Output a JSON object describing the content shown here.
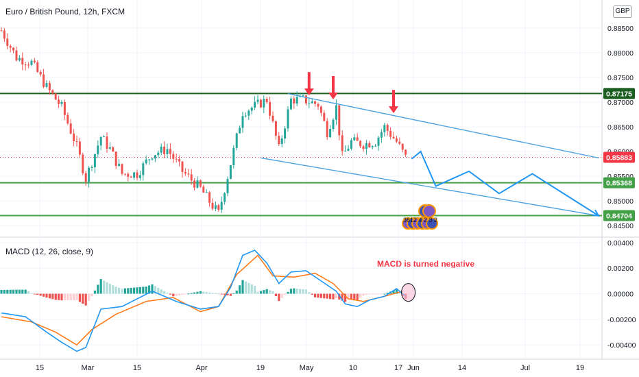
{
  "header": {
    "title": "Euro / British Pound, 12h, FXCM",
    "currency_badge": "GBP",
    "macd_title": "MACD (12, 26, close, 9)"
  },
  "annotations": {
    "macd_note": "MACD is turned negative",
    "event_badges": "3612 4 2 3 2"
  },
  "colors": {
    "up": "#26a69a",
    "down": "#ef5350",
    "resistance": "#1b5e20",
    "support": "#43a047",
    "channel": "#4fa3e0",
    "projection": "#2196f3",
    "arrow": "#f23645",
    "macd_line": "#2196f3",
    "signal_line": "#ff7a1a",
    "current_price": "#f23645"
  },
  "chart_data": [
    {
      "type": "line",
      "title": "Euro / British Pound, 12h, FXCM",
      "x_ticks": [
        "15",
        "Mar",
        "15",
        "Apr",
        "19",
        "May",
        "10",
        "17",
        "Jun",
        "14",
        "Jul",
        "19"
      ],
      "y_ticks": [
        "0.84500",
        "0.85000",
        "0.85500",
        "0.86000",
        "0.86500",
        "0.87000",
        "0.87500",
        "0.88000",
        "0.88500"
      ],
      "ylim": [
        0.8435,
        0.8865
      ],
      "price_path": [
        [
          0,
          0.8845
        ],
        [
          5,
          0.879
        ],
        [
          10,
          0.878
        ],
        [
          15,
          0.873
        ],
        [
          20,
          0.869
        ],
        [
          25,
          0.861
        ],
        [
          28,
          0.8545
        ],
        [
          33,
          0.863
        ],
        [
          36,
          0.8605
        ],
        [
          40,
          0.8555
        ],
        [
          45,
          0.8555
        ],
        [
          50,
          0.8595
        ],
        [
          55,
          0.8605
        ],
        [
          60,
          0.856
        ],
        [
          66,
          0.8525
        ],
        [
          70,
          0.849
        ],
        [
          72,
          0.8475
        ],
        [
          75,
          0.855
        ],
        [
          80,
          0.868
        ],
        [
          85,
          0.8695
        ],
        [
          88,
          0.8705
        ],
        [
          92,
          0.8605
        ],
        [
          96,
          0.8705
        ],
        [
          100,
          0.8705
        ],
        [
          105,
          0.8695
        ],
        [
          108,
          0.864
        ],
        [
          111,
          0.869
        ],
        [
          113,
          0.859
        ],
        [
          116,
          0.862
        ],
        [
          120,
          0.8615
        ],
        [
          124,
          0.862
        ],
        [
          127,
          0.865
        ],
        [
          131,
          0.862
        ],
        [
          134,
          0.8588
        ]
      ],
      "horizontal_levels": [
        {
          "label": "0.87175",
          "value": 0.87175,
          "role": "resistance"
        },
        {
          "label": "0.85368",
          "value": 0.85368,
          "role": "support"
        },
        {
          "label": "0.84704",
          "value": 0.84704,
          "role": "support"
        }
      ],
      "current_price": {
        "label": "0.85883",
        "value": 0.85883
      },
      "channel_lines": [
        [
          [
            95,
            0.8717
          ],
          [
            198,
            0.8587
          ]
        ],
        [
          [
            86,
            0.8587
          ],
          [
            198,
            0.847
          ]
        ]
      ],
      "projection_path": [
        [
          136,
          0.8585
        ],
        [
          139,
          0.86
        ],
        [
          144,
          0.853
        ],
        [
          155,
          0.856
        ],
        [
          165,
          0.8515
        ],
        [
          176,
          0.8555
        ],
        [
          198,
          0.847
        ]
      ],
      "arrow_markers": [
        {
          "x": 102,
          "value": 0.8708
        },
        {
          "x": 110,
          "value": 0.87
        },
        {
          "x": 130,
          "value": 0.8672
        }
      ]
    },
    {
      "type": "line",
      "title": "MACD (12, 26, close, 9)",
      "y_ticks": [
        "-0.00400",
        "-0.00200",
        "0.00000",
        "0.00200",
        "0.00400"
      ],
      "ylim": [
        -0.0049,
        0.0041
      ],
      "series": [
        {
          "name": "MACD",
          "values": [
            [
              0,
              -0.0015
            ],
            [
              8,
              -0.0018
            ],
            [
              15,
              -0.003
            ],
            [
              20,
              -0.0038
            ],
            [
              25,
              -0.0045
            ],
            [
              28,
              -0.0042
            ],
            [
              33,
              -0.0012
            ],
            [
              40,
              -0.001
            ],
            [
              50,
              0.0002
            ],
            [
              58,
              -0.0006
            ],
            [
              66,
              -0.0012
            ],
            [
              72,
              -0.001
            ],
            [
              76,
              0.0005
            ],
            [
              80,
              0.003
            ],
            [
              84,
              0.0034
            ],
            [
              88,
              0.0024
            ],
            [
              92,
              0.0008
            ],
            [
              96,
              0.0017
            ],
            [
              101,
              0.0018
            ],
            [
              106,
              0.001
            ],
            [
              111,
              0.0002
            ],
            [
              114,
              -0.0008
            ],
            [
              118,
              -0.001
            ],
            [
              122,
              -0.0005
            ],
            [
              127,
              -0.0002
            ],
            [
              131,
              0.0004
            ],
            [
              134,
              -0.0002
            ]
          ]
        },
        {
          "name": "Signal",
          "values": [
            [
              0,
              -0.0018
            ],
            [
              10,
              -0.0022
            ],
            [
              18,
              -0.003
            ],
            [
              25,
              -0.004
            ],
            [
              30,
              -0.0028
            ],
            [
              38,
              -0.0016
            ],
            [
              48,
              -0.0006
            ],
            [
              57,
              -0.0003
            ],
            [
              66,
              -0.0014
            ],
            [
              72,
              -0.001
            ],
            [
              78,
              0.0015
            ],
            [
              85,
              0.003
            ],
            [
              90,
              0.0014
            ],
            [
              97,
              0.0013
            ],
            [
              104,
              0.0016
            ],
            [
              110,
              0.0008
            ],
            [
              115,
              -0.0004
            ],
            [
              120,
              -0.0006
            ],
            [
              127,
              -0.0002
            ],
            [
              133,
              0.0002
            ]
          ]
        }
      ]
    }
  ]
}
